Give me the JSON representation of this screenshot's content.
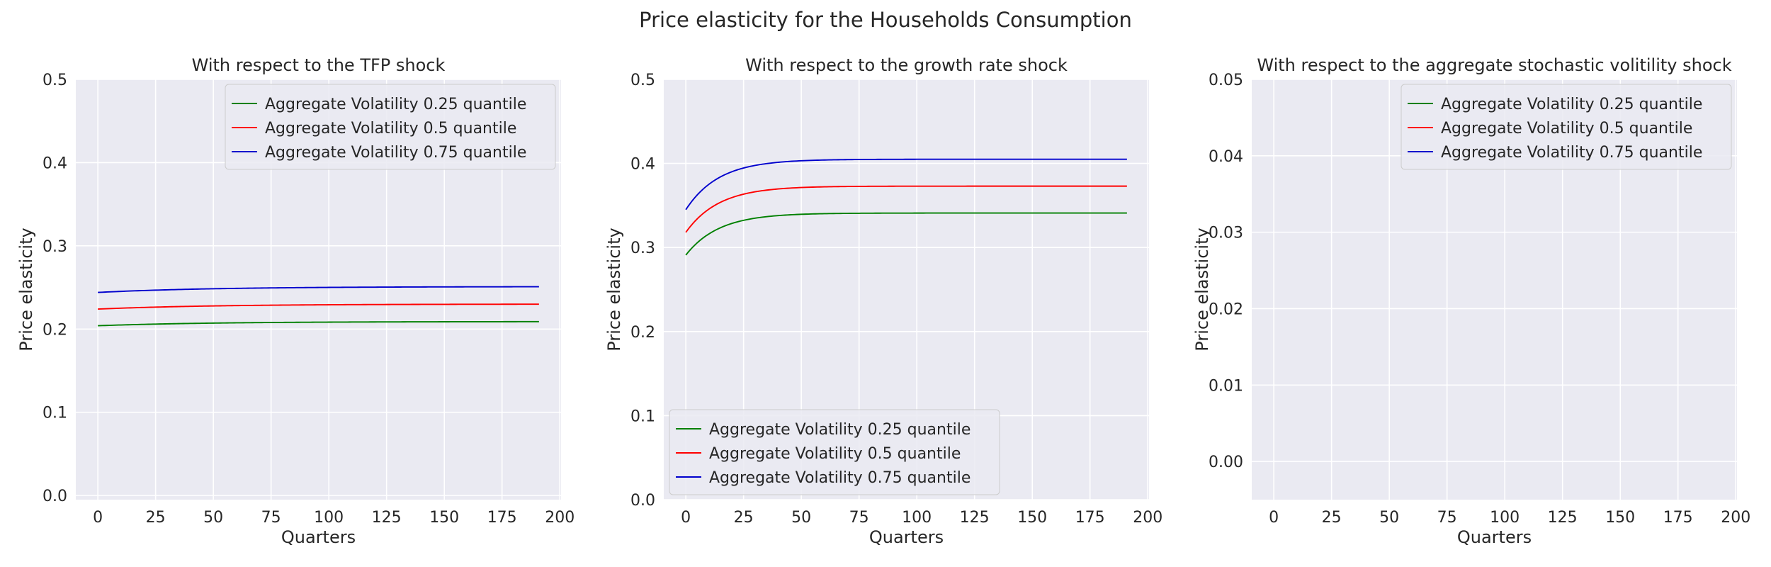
{
  "figure": {
    "title": "Price elasticity for the Households Consumption"
  },
  "chart_data": [
    {
      "type": "line",
      "title": "With respect to the TFP shock",
      "xlabel": "Quarters",
      "ylabel": "Price elasticity",
      "xlim": [
        -9.55,
        200.55
      ],
      "ylim": [
        -0.005,
        0.5
      ],
      "xticks": [
        0,
        25,
        50,
        75,
        100,
        125,
        150,
        175,
        200
      ],
      "yticks": [
        0.0,
        0.1,
        0.2,
        0.3,
        0.4,
        0.5
      ],
      "ytick_labels": [
        "0.0",
        "0.1",
        "0.2",
        "0.3",
        "0.4",
        "0.5"
      ],
      "legend_loc": "upper right",
      "grid": true,
      "series": [
        {
          "name": "Aggregate Volatility 0.25 quantile",
          "color": "#008000",
          "start": 0.204,
          "end": 0.209,
          "rate": 0.02,
          "x_end": 191
        },
        {
          "name": "Aggregate Volatility 0.5 quantile",
          "color": "#ff0000",
          "start": 0.224,
          "end": 0.23,
          "rate": 0.02,
          "x_end": 191
        },
        {
          "name": "Aggregate Volatility 0.75 quantile",
          "color": "#0000cd",
          "start": 0.244,
          "end": 0.251,
          "rate": 0.02,
          "x_end": 191
        }
      ]
    },
    {
      "type": "line",
      "title": "With respect to the growth rate shock",
      "xlabel": "Quarters",
      "ylabel": "Price elasticity",
      "xlim": [
        -9.55,
        200.55
      ],
      "ylim": [
        0.0,
        0.5
      ],
      "xticks": [
        0,
        25,
        50,
        75,
        100,
        125,
        150,
        175,
        200
      ],
      "yticks": [
        0.0,
        0.1,
        0.2,
        0.3,
        0.4,
        0.5
      ],
      "ytick_labels": [
        "0.0",
        "0.1",
        "0.2",
        "0.3",
        "0.4",
        "0.5"
      ],
      "legend_loc": "lower left",
      "grid": true,
      "series": [
        {
          "name": "Aggregate Volatility 0.25 quantile",
          "color": "#008000",
          "start": 0.291,
          "end": 0.341,
          "rate": 0.07,
          "x_end": 191
        },
        {
          "name": "Aggregate Volatility 0.5 quantile",
          "color": "#ff0000",
          "start": 0.318,
          "end": 0.373,
          "rate": 0.07,
          "x_end": 191
        },
        {
          "name": "Aggregate Volatility 0.75 quantile",
          "color": "#0000cd",
          "start": 0.345,
          "end": 0.405,
          "rate": 0.07,
          "x_end": 191
        }
      ]
    },
    {
      "type": "line",
      "title": "With respect to the aggregate stochastic volitility shock",
      "xlabel": "Quarters",
      "ylabel": "Price elasticity",
      "xlim": [
        -9.55,
        200.55
      ],
      "ylim": [
        -0.005,
        0.05
      ],
      "xticks": [
        0,
        25,
        50,
        75,
        100,
        125,
        150,
        175,
        200
      ],
      "yticks": [
        0.0,
        0.01,
        0.02,
        0.03,
        0.04,
        0.05
      ],
      "ytick_labels": [
        "0.00",
        "0.01",
        "0.02",
        "0.03",
        "0.04",
        "0.05"
      ],
      "legend_loc": "upper right",
      "grid": true,
      "series": [
        {
          "name": "Aggregate Volatility 0.25 quantile",
          "color": "#008000",
          "start": null,
          "end": null,
          "rate": 0,
          "x_end": 191
        },
        {
          "name": "Aggregate Volatility 0.5 quantile",
          "color": "#ff0000",
          "start": null,
          "end": null,
          "rate": 0,
          "x_end": 191
        },
        {
          "name": "Aggregate Volatility 0.75 quantile",
          "color": "#0000cd",
          "start": null,
          "end": null,
          "rate": 0,
          "x_end": 191
        }
      ]
    }
  ]
}
